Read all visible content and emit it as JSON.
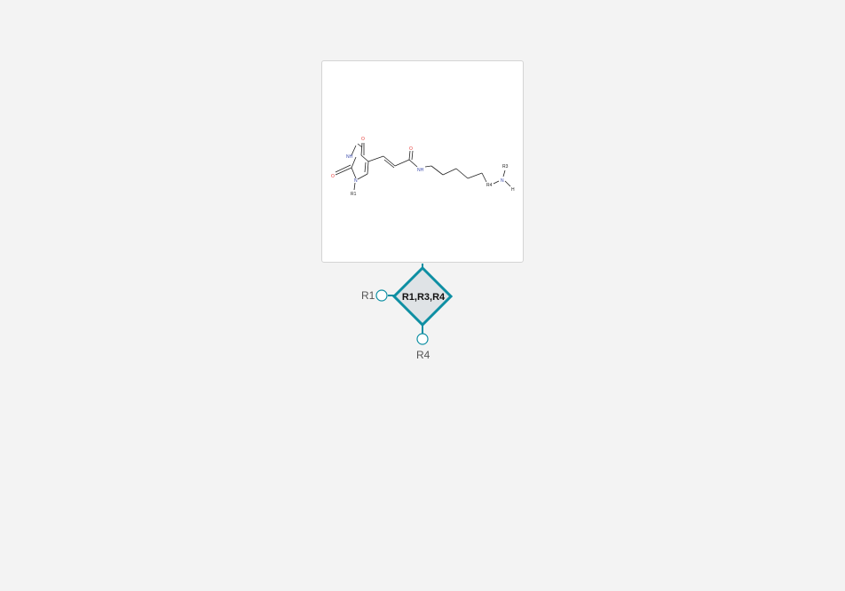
{
  "molecule": {
    "atoms": {
      "o_top": "O",
      "nh_ring": "NH",
      "o_left": "O",
      "n_ring": "N",
      "r1_sub": "R1",
      "o_amide": "O",
      "nh_amide": "NH",
      "r4_sub": "R4",
      "n_amine": "N",
      "r3_sub": "R3",
      "h_amine": "H"
    },
    "colors": {
      "oxygen": "#e53935",
      "nitrogen": "#3949ab",
      "bond": "#222222"
    }
  },
  "monomer_node": {
    "label": "R1,R3,R4",
    "color": "#0e8fa3"
  },
  "attachment_points": {
    "left": "R1",
    "bottom": "R4"
  }
}
